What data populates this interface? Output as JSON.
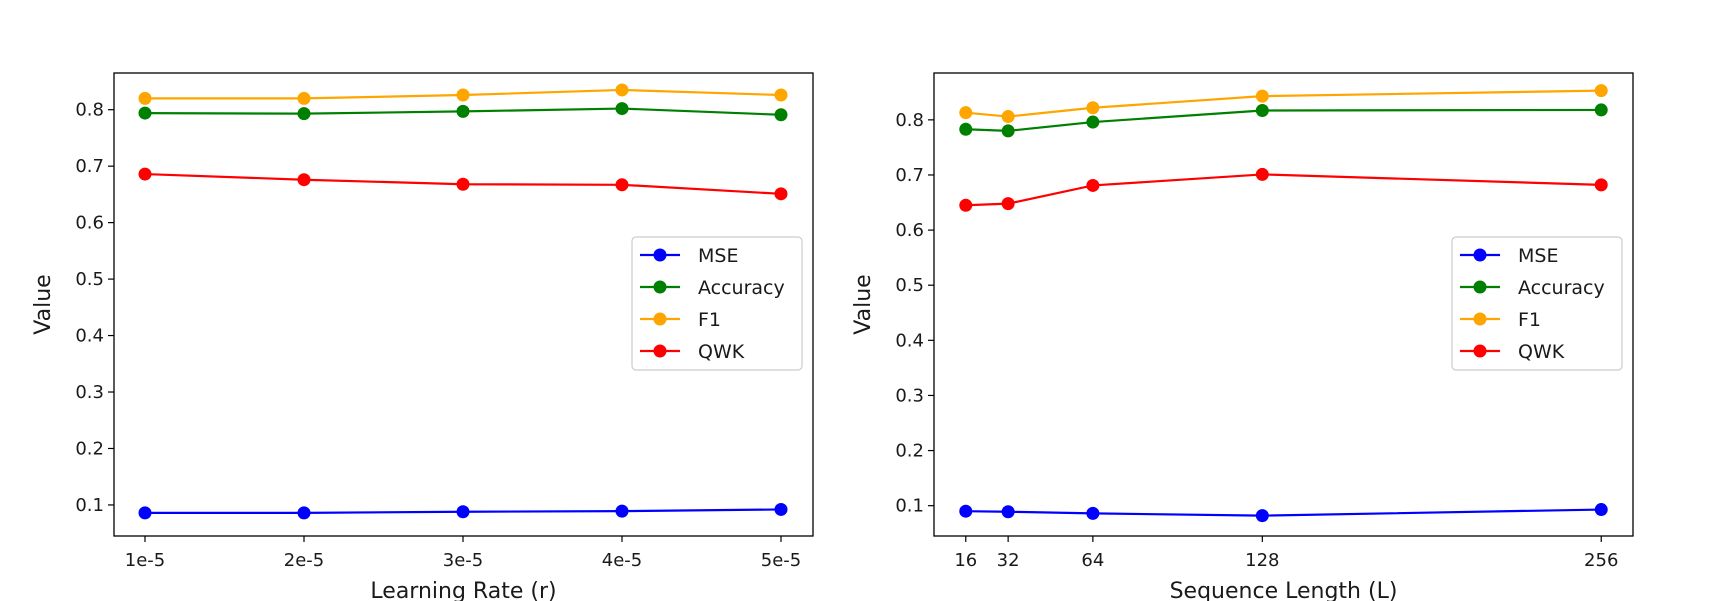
{
  "chart_data": [
    {
      "type": "line",
      "title": "",
      "xlabel": "Learning Rate (r)",
      "ylabel": "Value",
      "x_scale": "categorical",
      "categories": [
        "1e-5",
        "2e-5",
        "3e-5",
        "4e-5",
        "5e-5"
      ],
      "ylim": [
        0.045,
        0.865
      ],
      "yticks": [
        "0.1",
        "0.2",
        "0.3",
        "0.4",
        "0.5",
        "0.6",
        "0.7",
        "0.8"
      ],
      "legend_position": "center-right",
      "series": [
        {
          "name": "MSE",
          "color": "#0000ff",
          "values": [
            0.086,
            0.086,
            0.088,
            0.089,
            0.092
          ]
        },
        {
          "name": "Accuracy",
          "color": "#008000",
          "values": [
            0.794,
            0.793,
            0.797,
            0.802,
            0.791
          ]
        },
        {
          "name": "F1",
          "color": "#ffa500",
          "values": [
            0.82,
            0.82,
            0.826,
            0.835,
            0.826
          ]
        },
        {
          "name": "QWK",
          "color": "#ff0000",
          "values": [
            0.686,
            0.676,
            0.668,
            0.667,
            0.651
          ]
        }
      ]
    },
    {
      "type": "line",
      "title": "",
      "xlabel": "Sequence Length (L)",
      "ylabel": "Value",
      "x_scale": "linear",
      "x": [
        16,
        32,
        64,
        128,
        256
      ],
      "xlim": [
        4,
        268
      ],
      "xticks": [
        "16",
        "32",
        "64",
        "128",
        "256"
      ],
      "ylim": [
        0.045,
        0.885
      ],
      "yticks": [
        "0.1",
        "0.2",
        "0.3",
        "0.4",
        "0.5",
        "0.6",
        "0.7",
        "0.8"
      ],
      "legend_position": "center-right",
      "series": [
        {
          "name": "MSE",
          "color": "#0000ff",
          "values": [
            0.09,
            0.089,
            0.086,
            0.082,
            0.093
          ]
        },
        {
          "name": "Accuracy",
          "color": "#008000",
          "values": [
            0.783,
            0.78,
            0.796,
            0.817,
            0.818
          ]
        },
        {
          "name": "F1",
          "color": "#ffa500",
          "values": [
            0.813,
            0.806,
            0.822,
            0.843,
            0.853
          ]
        },
        {
          "name": "QWK",
          "color": "#ff0000",
          "values": [
            0.645,
            0.648,
            0.681,
            0.701,
            0.682
          ]
        }
      ]
    }
  ]
}
